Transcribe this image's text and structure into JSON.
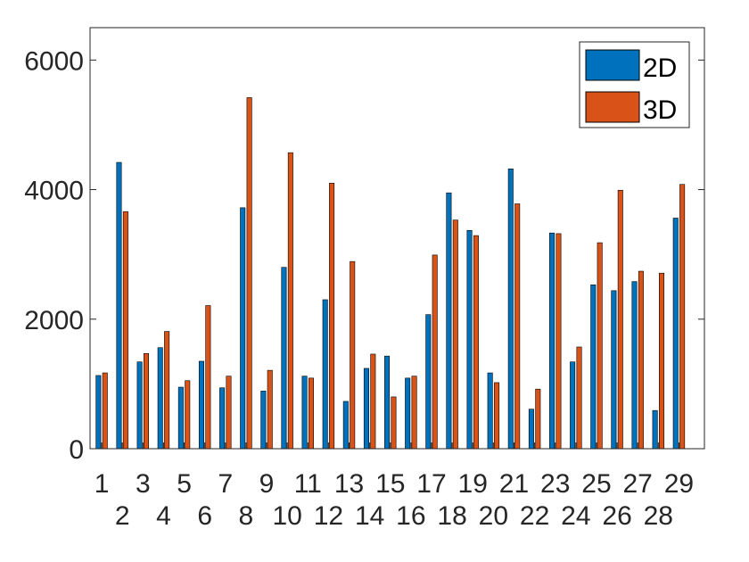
{
  "chart_data": {
    "type": "bar",
    "categories": [
      "1",
      "2",
      "3",
      "4",
      "5",
      "6",
      "7",
      "8",
      "9",
      "10",
      "11",
      "12",
      "13",
      "14",
      "15",
      "16",
      "17",
      "18",
      "19",
      "20",
      "21",
      "22",
      "23",
      "24",
      "25",
      "26",
      "27",
      "28",
      "29"
    ],
    "series": [
      {
        "name": "2D",
        "color": "#0072BD",
        "values": [
          1130,
          4420,
          1340,
          1560,
          950,
          1350,
          940,
          3720,
          890,
          2800,
          1120,
          2300,
          730,
          1240,
          1430,
          1090,
          2070,
          3950,
          3370,
          1170,
          4320,
          610,
          3330,
          1340,
          2530,
          2440,
          2580,
          590,
          3560
        ]
      },
      {
        "name": "3D",
        "color": "#D95319",
        "values": [
          1170,
          3660,
          1470,
          1810,
          1050,
          2210,
          1120,
          5420,
          1210,
          4570,
          1090,
          4100,
          2890,
          1460,
          800,
          1120,
          2990,
          3530,
          3290,
          1020,
          3780,
          920,
          3320,
          1570,
          3180,
          3990,
          2740,
          2710,
          4080
        ]
      }
    ],
    "ylim": [
      0,
      6500
    ],
    "yticks": [
      0,
      2000,
      4000,
      6000
    ],
    "ytick_labels": [
      "0",
      "2000",
      "4000",
      "6000"
    ],
    "grid": false,
    "legend_position": "top-right",
    "legend_entries": [
      "2D",
      "3D"
    ]
  }
}
